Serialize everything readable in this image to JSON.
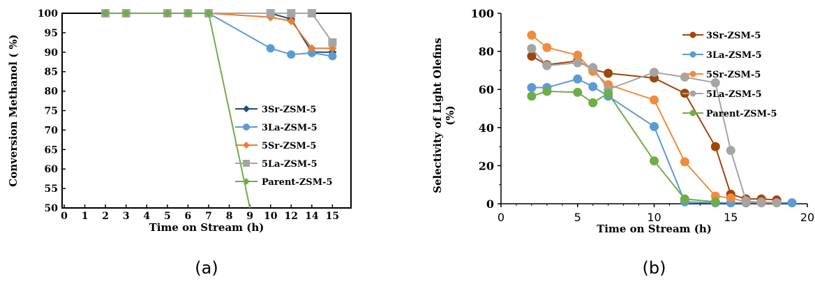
{
  "chart_data": [
    {
      "type": "line",
      "panel_label": "(a)",
      "xlabel": "Time on Stream (h)",
      "ylabel": "Conversion Methanol  ( %)",
      "x_categories": [
        "0",
        "1",
        "2",
        "3",
        "4",
        "5",
        "6",
        "7",
        "8",
        "9",
        "10",
        "12",
        "14",
        "15"
      ],
      "ylim": [
        50,
        100
      ],
      "yticks": [
        "50",
        "55",
        "60",
        "65",
        "70",
        "75",
        "80",
        "85",
        "90",
        "95",
        "100"
      ],
      "grid": false,
      "legend_position": "center-right",
      "series": [
        {
          "name": "3Sr-ZSM-5",
          "color": "#1f4e79",
          "marker": "diamond",
          "x": [
            "2",
            "3",
            "5",
            "6",
            "7",
            "10",
            "12",
            "14",
            "15"
          ],
          "y": [
            100,
            100,
            100,
            100,
            100,
            100,
            98.5,
            90,
            90
          ]
        },
        {
          "name": "3La-ZSM-5",
          "color": "#5b9bd5",
          "marker": "circle",
          "x": [
            "2",
            "3",
            "5",
            "6",
            "7",
            "10",
            "12",
            "14",
            "15"
          ],
          "y": [
            100,
            100,
            100,
            100,
            100,
            91,
            89.4,
            89.8,
            89
          ]
        },
        {
          "name": "5Sr-ZSM-5",
          "color": "#ed7d31",
          "marker": "diamond",
          "x": [
            "2",
            "3",
            "5",
            "6",
            "7",
            "10",
            "12",
            "14",
            "15"
          ],
          "y": [
            100,
            100,
            100,
            100,
            100,
            99,
            98,
            91,
            91
          ]
        },
        {
          "name": "5La-ZSM-5",
          "color": "#a5a5a5",
          "marker": "square",
          "x": [
            "2",
            "3",
            "5",
            "6",
            "7",
            "10",
            "12",
            "14",
            "15"
          ],
          "y": [
            100,
            100,
            100,
            100,
            100,
            100,
            100,
            100,
            92.5
          ]
        },
        {
          "name": "Parent-ZSM-5",
          "color": "#70ad47",
          "marker": "diamond",
          "x": [
            "2",
            "3",
            "5",
            "6",
            "7",
            "9"
          ],
          "y": [
            100,
            100,
            100,
            100,
            100,
            50
          ]
        }
      ]
    },
    {
      "type": "line",
      "panel_label": "(b)",
      "xlabel": "Time on Stream (h)",
      "ylabel_line1": "Selectivity of  Light Olefins",
      "ylabel_line2": "(%)",
      "xlim": [
        0,
        20
      ],
      "xticks": [
        "0",
        "5",
        "10",
        "15",
        "20"
      ],
      "ylim": [
        0,
        100
      ],
      "yticks": [
        "0",
        "20",
        "40",
        "60",
        "80",
        "100"
      ],
      "grid": false,
      "legend_position": "top-right",
      "series": [
        {
          "name": "3Sr-ZSM-5",
          "color": "#a0460a",
          "marker": "circle",
          "x": [
            2,
            3,
            5,
            6,
            7,
            10,
            12,
            14,
            15,
            16,
            17,
            18
          ],
          "y": [
            77.5,
            73,
            75,
            70.5,
            68.5,
            66,
            58,
            30,
            5,
            2.5,
            2.5,
            2
          ]
        },
        {
          "name": "3La-ZSM-5",
          "color": "#5b9bd5",
          "marker": "circle",
          "x": [
            2,
            3,
            5,
            6,
            7,
            10,
            12,
            14,
            15,
            16,
            17,
            19
          ],
          "y": [
            61,
            61,
            65.5,
            61.5,
            56.5,
            40.5,
            1,
            0.5,
            0.5,
            0.5,
            0.5,
            0.5
          ]
        },
        {
          "name": "5Sr-ZSM-5",
          "color": "#f08c3c",
          "marker": "circle",
          "x": [
            2,
            3,
            5,
            6,
            7,
            10,
            12,
            14,
            15,
            16,
            17,
            18
          ],
          "y": [
            88.5,
            82,
            78,
            69.5,
            62.5,
            54.5,
            22,
            4,
            3,
            1,
            1,
            0.5
          ]
        },
        {
          "name": "5La-ZSM-5",
          "color": "#a5a5a5",
          "marker": "circle",
          "x": [
            2,
            3,
            5,
            6,
            7,
            10,
            12,
            14,
            15,
            16,
            17,
            18
          ],
          "y": [
            81.5,
            72.5,
            74,
            71.5,
            60,
            69,
            66.5,
            63.5,
            28,
            1.5,
            0.5,
            0.5
          ]
        },
        {
          "name": "Parent-ZSM-5",
          "color": "#70ad47",
          "marker": "circle",
          "x": [
            2,
            3,
            5,
            6,
            7,
            10,
            12,
            14
          ],
          "y": [
            56.5,
            59,
            58.5,
            53,
            58,
            22.5,
            2.5,
            1
          ]
        }
      ]
    }
  ]
}
